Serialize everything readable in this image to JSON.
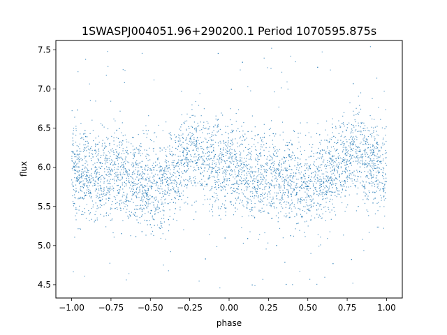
{
  "chart_data": {
    "type": "scatter",
    "title": "1SWASPJ004051.96+290200.1 Period 1070595.875s",
    "xlabel": "phase",
    "ylabel": "flux",
    "xlim": [
      -1.1,
      1.1
    ],
    "ylim": [
      4.33,
      7.62
    ],
    "xticks": [
      -1.0,
      -0.75,
      -0.5,
      -0.25,
      0.0,
      0.25,
      0.5,
      0.75,
      1.0
    ],
    "xtick_labels": [
      "−1.00",
      "−0.75",
      "−0.50",
      "−0.25",
      "0.00",
      "0.25",
      "0.50",
      "0.75",
      "1.00"
    ],
    "yticks": [
      4.5,
      5.0,
      5.5,
      6.0,
      6.5,
      7.0,
      7.5
    ],
    "ytick_labels": [
      "4.5",
      "5.0",
      "5.5",
      "6.0",
      "6.5",
      "7.0",
      "7.5"
    ],
    "grid": false,
    "legend": "none",
    "series": [
      {
        "color": "#1f77b4",
        "x_range": [
          -1.0,
          1.0
        ],
        "trend": {
          "phase": [
            -1.0,
            -0.9,
            -0.8,
            -0.7,
            -0.6,
            -0.5,
            -0.4,
            -0.3,
            -0.2,
            -0.1,
            0.0,
            0.1,
            0.2,
            0.3,
            0.4,
            0.5,
            0.6,
            0.7,
            0.8,
            0.9,
            1.0
          ],
          "median_flux": [
            5.95,
            5.9,
            5.88,
            5.95,
            5.85,
            5.72,
            5.82,
            6.05,
            6.2,
            6.05,
            5.95,
            5.9,
            5.88,
            5.95,
            5.85,
            5.72,
            5.82,
            6.05,
            6.2,
            6.05,
            5.95
          ]
        },
        "scatter_sigma": 0.28,
        "outlier_range": [
          4.45,
          7.55
        ]
      }
    ]
  }
}
